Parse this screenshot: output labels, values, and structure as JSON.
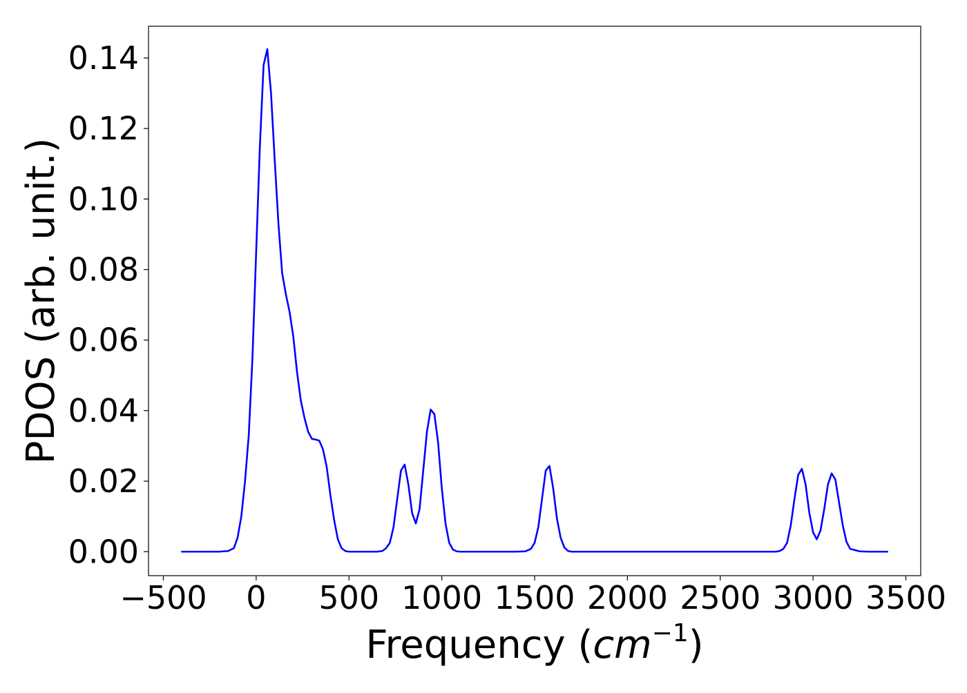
{
  "chart_data": {
    "type": "line",
    "title": "",
    "xlabel": {
      "prefix": "Frequency (",
      "unit": "cm",
      "exponent": "−1",
      "suffix": ")"
    },
    "ylabel": "PDOS (arb. unit.)",
    "xlim": [
      -580,
      3580
    ],
    "ylim": [
      -0.0068,
      0.149
    ],
    "xticks": [
      -500,
      0,
      500,
      1000,
      1500,
      2000,
      2500,
      3000,
      3500
    ],
    "xtick_labels": [
      "−500",
      "0",
      "500",
      "1000",
      "1500",
      "2000",
      "2500",
      "3000",
      "3500"
    ],
    "yticks": [
      0.0,
      0.02,
      0.04,
      0.06,
      0.08,
      0.1,
      0.12,
      0.14
    ],
    "ytick_labels": [
      "0.00",
      "0.02",
      "0.04",
      "0.06",
      "0.08",
      "0.10",
      "0.12",
      "0.14"
    ],
    "grid": false,
    "line_color": "#0000ff",
    "series": [
      {
        "x": [
          -400,
          -200,
          -150,
          -120,
          -100,
          -80,
          -60,
          -40,
          -20,
          0,
          20,
          40,
          60,
          80,
          100,
          120,
          140,
          160,
          180,
          200,
          220,
          240,
          260,
          280,
          300,
          320,
          340,
          360,
          380,
          400,
          420,
          440,
          460,
          480,
          500,
          550,
          600,
          650,
          680,
          700,
          720,
          740,
          760,
          780,
          800,
          820,
          840,
          860,
          880,
          900,
          920,
          940,
          960,
          980,
          1000,
          1020,
          1040,
          1060,
          1080,
          1100,
          1200,
          1300,
          1400,
          1450,
          1480,
          1500,
          1520,
          1540,
          1560,
          1580,
          1600,
          1620,
          1640,
          1660,
          1680,
          1700,
          1800,
          2000,
          2200,
          2400,
          2600,
          2800,
          2820,
          2840,
          2860,
          2880,
          2900,
          2920,
          2940,
          2960,
          2980,
          3000,
          3020,
          3040,
          3060,
          3080,
          3100,
          3120,
          3140,
          3160,
          3180,
          3200,
          3250,
          3300,
          3350,
          3400
        ],
        "y": [
          0.0,
          0.0,
          0.0002,
          0.001,
          0.004,
          0.01,
          0.02,
          0.033,
          0.055,
          0.085,
          0.115,
          0.138,
          0.1425,
          0.13,
          0.111,
          0.093,
          0.079,
          0.073,
          0.068,
          0.061,
          0.051,
          0.043,
          0.038,
          0.034,
          0.032,
          0.0318,
          0.0315,
          0.029,
          0.024,
          0.016,
          0.009,
          0.0035,
          0.001,
          0.0002,
          0.0,
          0.0,
          0.0,
          0.0,
          0.0002,
          0.001,
          0.0025,
          0.007,
          0.015,
          0.023,
          0.0247,
          0.019,
          0.011,
          0.008,
          0.012,
          0.023,
          0.034,
          0.0403,
          0.039,
          0.031,
          0.018,
          0.008,
          0.0025,
          0.0006,
          0.0001,
          0.0,
          0.0,
          0.0,
          0.0,
          0.0001,
          0.0008,
          0.0025,
          0.007,
          0.015,
          0.023,
          0.0243,
          0.018,
          0.0095,
          0.004,
          0.0012,
          0.0002,
          0.0,
          0.0,
          0.0,
          0.0,
          0.0,
          0.0,
          0.0,
          0.0002,
          0.0008,
          0.0025,
          0.0075,
          0.015,
          0.0218,
          0.0235,
          0.019,
          0.011,
          0.0055,
          0.0035,
          0.006,
          0.012,
          0.019,
          0.0222,
          0.0205,
          0.014,
          0.0075,
          0.0028,
          0.0008,
          0.0001,
          0.0,
          0.0,
          0.0
        ]
      }
    ]
  }
}
